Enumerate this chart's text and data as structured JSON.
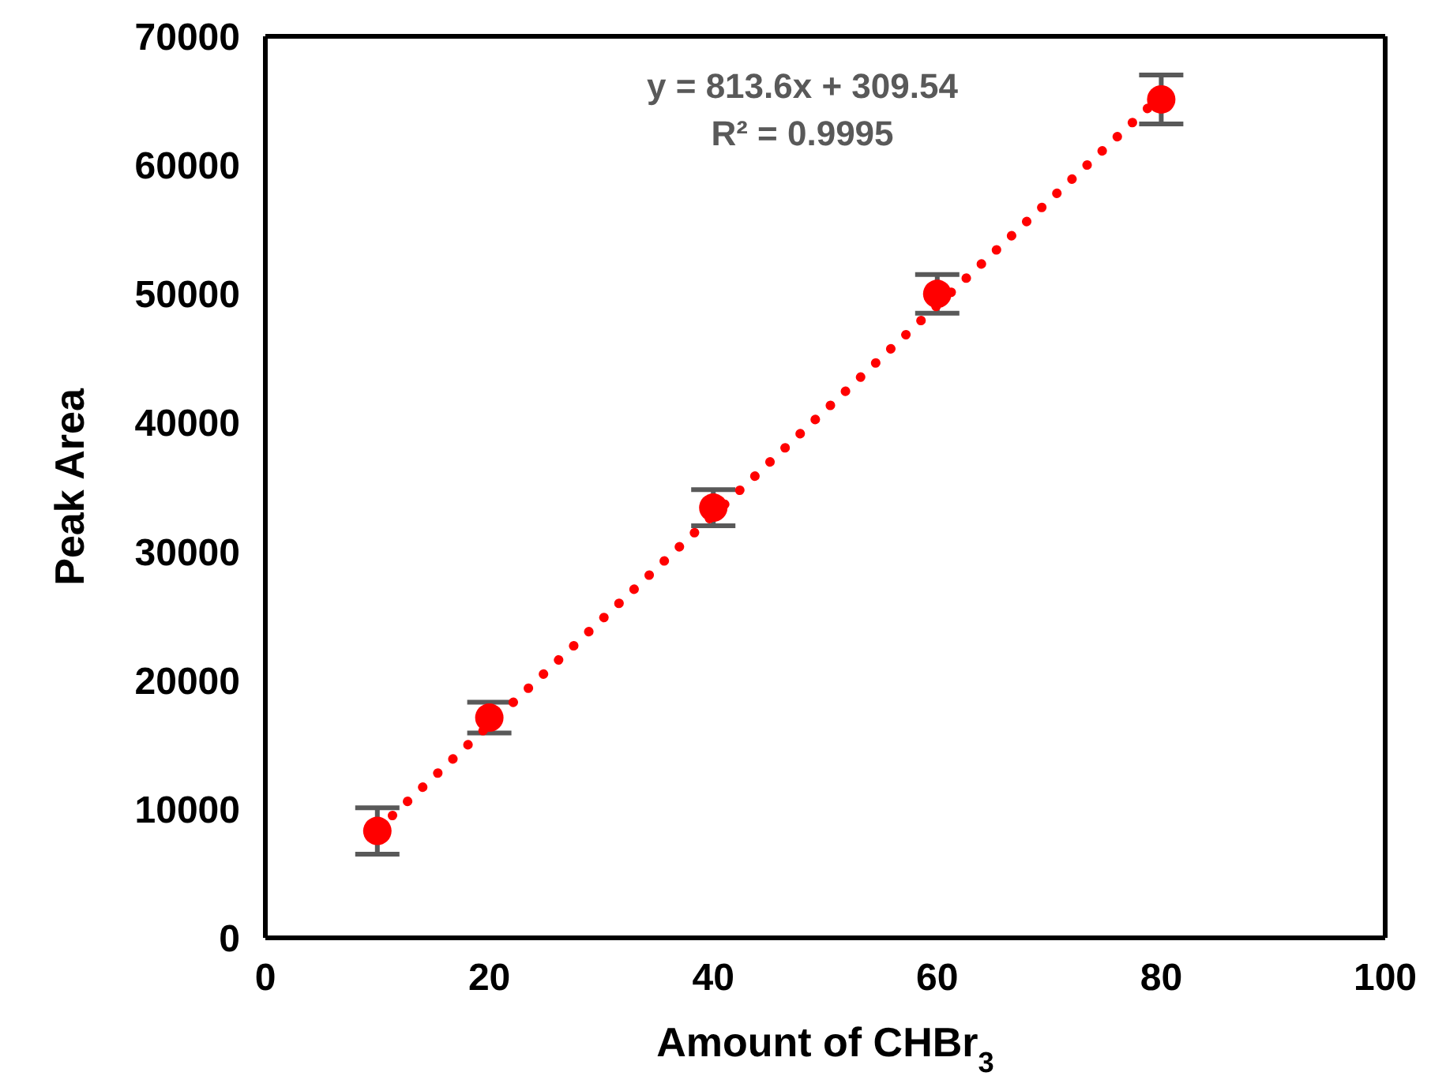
{
  "chart_data": {
    "type": "scatter",
    "xlabel": "Amount of CHBr$_{3}$",
    "ylabel": "Peak Area",
    "annotations": [
      "y = 813.6x + 309.54",
      "R² = 0.9995"
    ],
    "xlim": [
      0,
      100
    ],
    "xticks": [
      0,
      20,
      40,
      60,
      80,
      100
    ],
    "ylim": [
      0,
      70000
    ],
    "yticks": [
      0,
      10000,
      20000,
      30000,
      40000,
      50000,
      60000,
      70000
    ],
    "grid": false,
    "series": [
      {
        "color": "#ff0000",
        "marker": "circle",
        "x": [
          10,
          20,
          40,
          60,
          80
        ],
        "values": [
          8300,
          17100,
          33400,
          50000,
          65100
        ],
        "errors": [
          1800,
          1200,
          1400,
          1500,
          1900
        ]
      },
      {
        "type": "line",
        "color": "#ff0000",
        "line_style": "dotted",
        "x": [
          10,
          80
        ],
        "values": [
          8400,
          65400
        ]
      }
    ]
  }
}
